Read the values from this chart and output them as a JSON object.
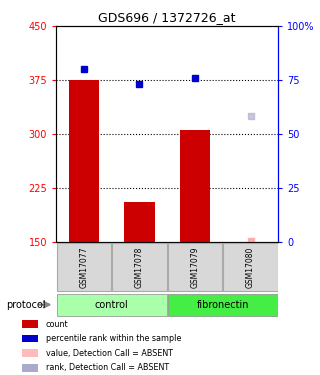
{
  "title": "GDS696 / 1372726_at",
  "samples": [
    "GSM17077",
    "GSM17078",
    "GSM17079",
    "GSM17080"
  ],
  "bar_values": [
    375,
    205,
    305,
    150
  ],
  "bar_color": "#cc0000",
  "blue_dot_values": [
    390,
    370,
    378,
    null
  ],
  "blue_dot_absent": [
    null,
    null,
    null,
    325
  ],
  "red_dot_absent": [
    null,
    null,
    null,
    151
  ],
  "ylim_left": [
    150,
    450
  ],
  "ylim_right": [
    0,
    100
  ],
  "yticks_left": [
    150,
    225,
    300,
    375,
    450
  ],
  "yticks_right": [
    0,
    25,
    50,
    75,
    100
  ],
  "hlines": [
    225,
    300,
    375
  ],
  "groups": [
    {
      "label": "control",
      "samples": [
        0,
        1
      ],
      "color": "#aaffaa"
    },
    {
      "label": "fibronectin",
      "samples": [
        2,
        3
      ],
      "color": "#44ee44"
    }
  ],
  "bar_width": 0.55,
  "legend_items": [
    {
      "color": "#cc0000",
      "label": "count"
    },
    {
      "color": "#0000cc",
      "label": "percentile rank within the sample"
    },
    {
      "color": "#ffbbbb",
      "label": "value, Detection Call = ABSENT"
    },
    {
      "color": "#aaaacc",
      "label": "rank, Detection Call = ABSENT"
    }
  ]
}
